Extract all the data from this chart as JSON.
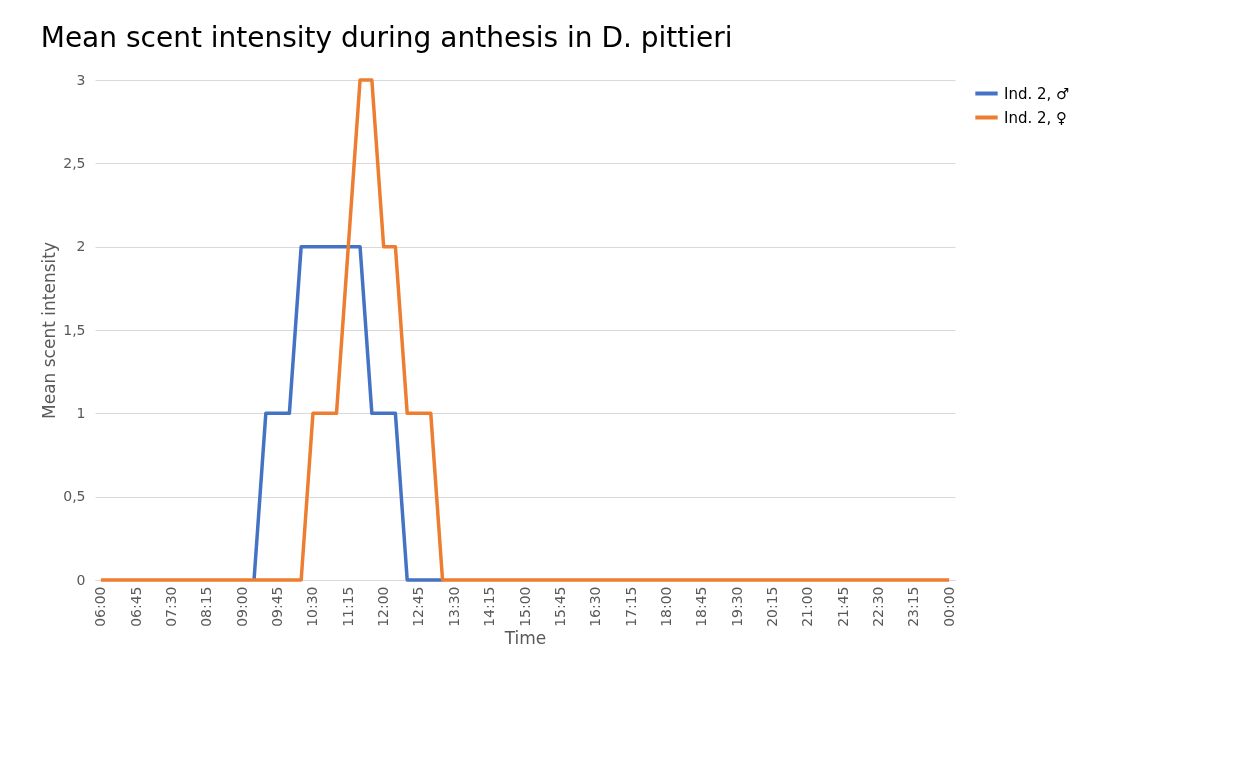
{
  "chart_data": {
    "type": "line",
    "title": "Mean scent intensity during anthesis in D. pittieri",
    "xlabel": "Time",
    "ylabel": "Mean scent intensity",
    "categories": [
      "06:00",
      null,
      null,
      "06:45",
      null,
      null,
      "07:30",
      null,
      null,
      "08:15",
      null,
      null,
      "09:00",
      null,
      null,
      "09:45",
      null,
      null,
      "10:30",
      null,
      null,
      "11:15",
      null,
      null,
      "12:00",
      null,
      null,
      "12:45",
      null,
      null,
      "13:30",
      null,
      null,
      "14:15",
      null,
      null,
      "15:00",
      null,
      null,
      "15:45",
      null,
      null,
      "16:30",
      null,
      null,
      "17:15",
      null,
      null,
      "18:00",
      null,
      null,
      "18:45",
      null,
      null,
      "19:30",
      null,
      null,
      "20:15",
      null,
      null,
      "21:00",
      null,
      null,
      "21:45",
      null,
      null,
      "22:30",
      null,
      null,
      "23:15",
      null,
      null,
      "00:00"
    ],
    "series": [
      {
        "name": "Ind. 2, ♂",
        "color": "#4472c4",
        "values": [
          null,
          null,
          null,
          null,
          null,
          null,
          null,
          null,
          null,
          null,
          null,
          null,
          null,
          0,
          1,
          1,
          1,
          2,
          2,
          2,
          2,
          2,
          2,
          1,
          1,
          1,
          0,
          0,
          0,
          0,
          null,
          null,
          null,
          null,
          null,
          null,
          null,
          null,
          null,
          null,
          null,
          null,
          null,
          null,
          null,
          null,
          null,
          null,
          null,
          null,
          null,
          null,
          null,
          null,
          null,
          null,
          null,
          null,
          null,
          null,
          null,
          null,
          null,
          null,
          null,
          null,
          null,
          null,
          null,
          null,
          null,
          null,
          null
        ]
      },
      {
        "name": "Ind. 2, ♀",
        "color": "#ed7d31",
        "values": [
          0,
          0,
          0,
          0,
          0,
          0,
          0,
          0,
          0,
          0,
          0,
          0,
          0,
          0,
          0,
          0,
          0,
          0,
          1,
          1,
          1,
          2,
          3,
          3,
          2,
          2,
          1,
          1,
          1,
          0,
          0,
          0,
          0,
          0,
          0,
          0,
          0,
          0,
          0,
          0,
          0,
          0,
          0,
          0,
          0,
          0,
          0,
          0,
          0,
          0,
          0,
          0,
          0,
          0,
          0,
          0,
          0,
          0,
          0,
          0,
          0,
          0,
          0,
          0,
          0,
          0,
          0,
          0,
          0,
          0,
          0,
          0,
          0
        ]
      }
    ],
    "ylim": [
      0,
      3
    ],
    "yticks": [
      0,
      {
        "value": 0.5,
        "label": "0,5"
      },
      1,
      {
        "value": 1.5,
        "label": "1,5"
      },
      2,
      {
        "value": 2.5,
        "label": "2,5"
      },
      3
    ],
    "grid": "y",
    "legend": "right",
    "marker": "none",
    "line_style": "solid"
  }
}
